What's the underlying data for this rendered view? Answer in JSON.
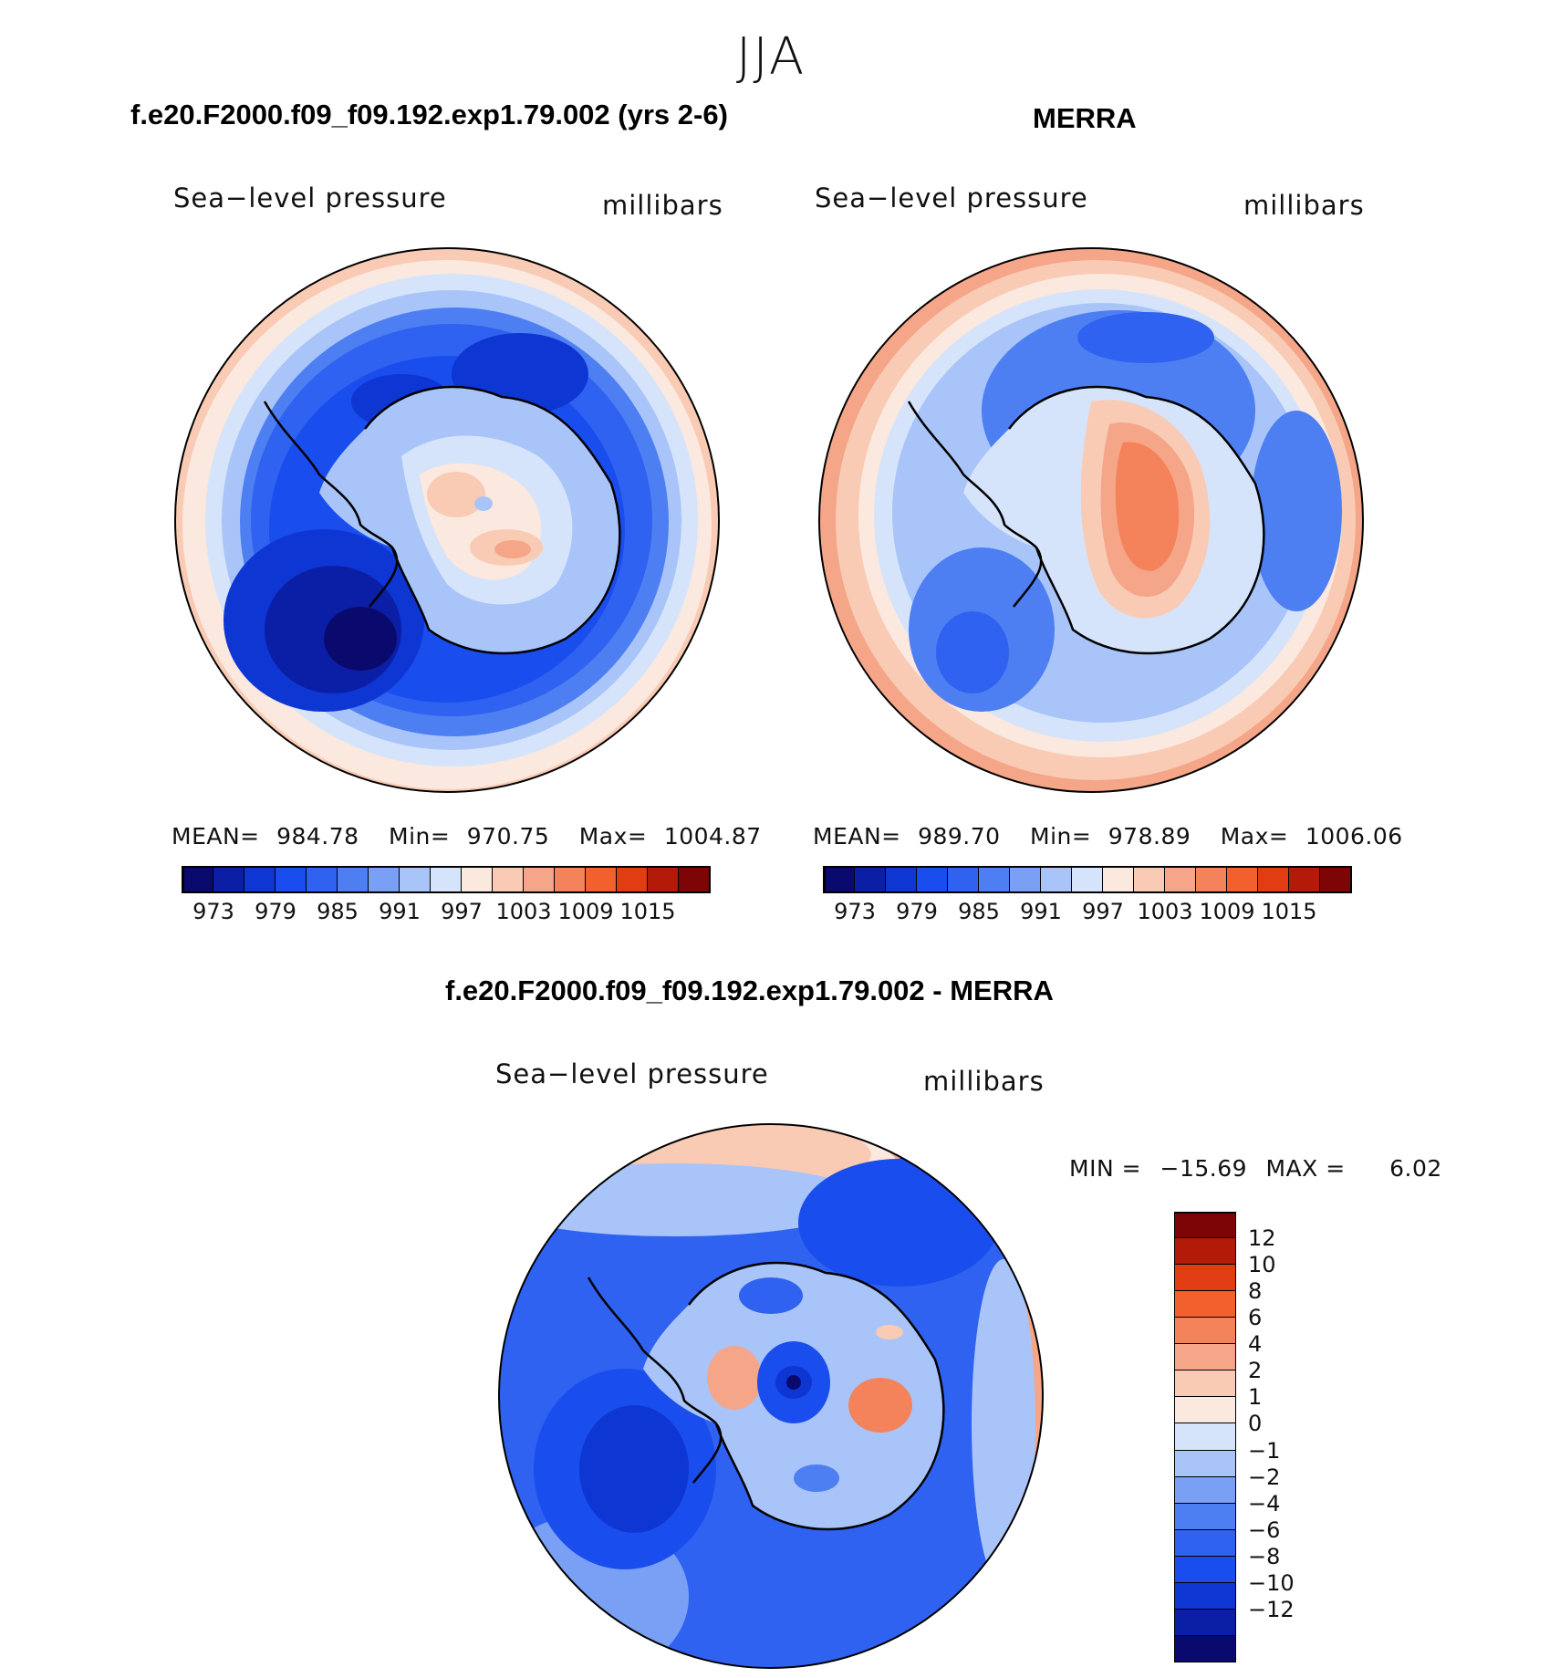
{
  "figure": {
    "season": "JJA",
    "colors": {
      "palette_20": [
        "#0a0a6e",
        "#0b1fa6",
        "#0e36d2",
        "#1a4ded",
        "#2f62f0",
        "#4d7ff2",
        "#7aa0f5",
        "#a9c4f8",
        "#d5e4fb",
        "#fbe8de",
        "#f9cbb5",
        "#f6a688",
        "#f4825b",
        "#f2602e",
        "#e23c12",
        "#b41a08",
        "#7d0505"
      ]
    },
    "panels": [
      {
        "title": "f.e20.F2000.f09_f09.192.exp1.79.002 (yrs 2-6)",
        "field_label": "Sea−level pressure",
        "units_label": "millibars",
        "stats": {
          "mean_label": "MEAN=",
          "mean": "984.78",
          "min_label": "Min=",
          "min": "970.75",
          "max_label": "Max=",
          "max": "1004.87"
        },
        "colorbar_ticks": [
          "973",
          "979",
          "985",
          "991",
          "997",
          "1003",
          "1009",
          "1015"
        ]
      },
      {
        "title": "MERRA",
        "field_label": "Sea−level pressure",
        "units_label": "millibars",
        "stats": {
          "mean_label": "MEAN=",
          "mean": "989.70",
          "min_label": "Min=",
          "min": "978.89",
          "max_label": "Max=",
          "max": "1006.06"
        },
        "colorbar_ticks": [
          "973",
          "979",
          "985",
          "991",
          "997",
          "1003",
          "1009",
          "1015"
        ]
      }
    ],
    "diff": {
      "title": "f.e20.F2000.f09_f09.192.exp1.79.002 - MERRA",
      "field_label": "Sea−level pressure",
      "units_label": "millibars",
      "min_label": "MIN =",
      "min": "−15.69",
      "max_label": "MAX =",
      "max": "6.02",
      "colorbar_ticks": [
        "12",
        "10",
        "8",
        "6",
        "4",
        "2",
        "1",
        "0",
        "−1",
        "−2",
        "−4",
        "−6",
        "−8",
        "−10",
        "−12"
      ],
      "colorbar_colors": [
        "#7d0505",
        "#b41a08",
        "#e23c12",
        "#f2602e",
        "#f4825b",
        "#f6a688",
        "#f9cbb5",
        "#fbe8de",
        "#d5e4fb",
        "#a9c4f8",
        "#7aa0f5",
        "#4d7ff2",
        "#2f62f0",
        "#1a4ded",
        "#0e36d2",
        "#0b1fa6",
        "#0a0a6e"
      ]
    }
  },
  "chart_data": [
    {
      "type": "heatmap",
      "title": "f.e20.F2000.f09_f09.192.exp1.79.002 (yrs 2-6)",
      "variable": "Sea−level pressure",
      "units": "millibars",
      "projection": "south-polar stereographic",
      "mean": 984.78,
      "min": 970.75,
      "max": 1004.87,
      "contour_levels": [
        973,
        976,
        979,
        982,
        985,
        988,
        991,
        994,
        997,
        1000,
        1003,
        1006,
        1009,
        1012,
        1015,
        1018
      ],
      "colorbar_tick_values": [
        973,
        979,
        985,
        991,
        997,
        1003,
        1009,
        1015
      ]
    },
    {
      "type": "heatmap",
      "title": "MERRA",
      "variable": "Sea−level pressure",
      "units": "millibars",
      "projection": "south-polar stereographic",
      "mean": 989.7,
      "min": 978.89,
      "max": 1006.06,
      "contour_levels": [
        973,
        976,
        979,
        982,
        985,
        988,
        991,
        994,
        997,
        1000,
        1003,
        1006,
        1009,
        1012,
        1015,
        1018
      ],
      "colorbar_tick_values": [
        973,
        979,
        985,
        991,
        997,
        1003,
        1009,
        1015
      ]
    },
    {
      "type": "heatmap",
      "title": "f.e20.F2000.f09_f09.192.exp1.79.002 - MERRA",
      "variable": "Sea−level pressure",
      "units": "millibars",
      "projection": "south-polar stereographic",
      "min": -15.69,
      "max": 6.02,
      "contour_levels": [
        -12,
        -10,
        -8,
        -6,
        -4,
        -2,
        -1,
        0,
        1,
        2,
        4,
        6,
        8,
        10,
        12
      ],
      "colorbar_tick_values": [
        12,
        10,
        8,
        6,
        4,
        2,
        1,
        0,
        -1,
        -2,
        -4,
        -6,
        -8,
        -10,
        -12
      ]
    }
  ]
}
